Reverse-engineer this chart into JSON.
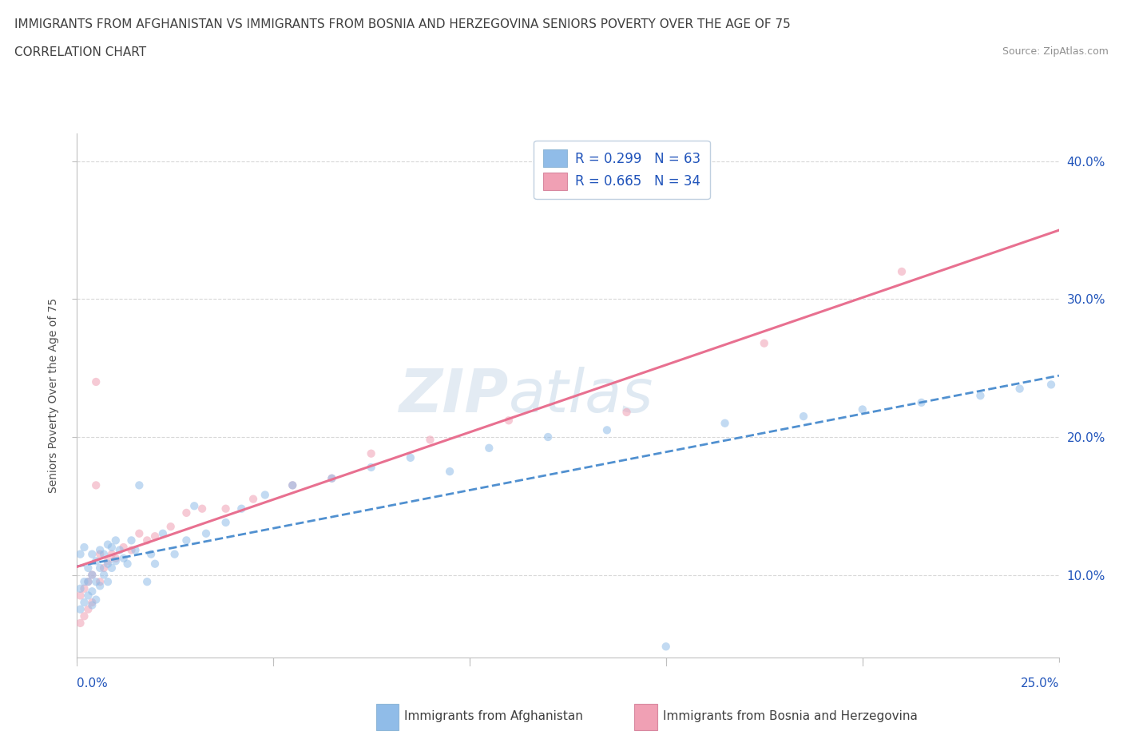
{
  "title_line1": "IMMIGRANTS FROM AFGHANISTAN VS IMMIGRANTS FROM BOSNIA AND HERZEGOVINA SENIORS POVERTY OVER THE AGE OF 75",
  "title_line2": "CORRELATION CHART",
  "source_text": "Source: ZipAtlas.com",
  "ylabel": "Seniors Poverty Over the Age of 75",
  "watermark_part1": "ZIP",
  "watermark_part2": "atlas",
  "afghanistan_color": "#90bce8",
  "bosnia_color": "#f0a0b4",
  "afghanistan_line_color": "#5090d0",
  "bosnia_line_color": "#e87090",
  "xlim": [
    0.0,
    0.25
  ],
  "ylim": [
    0.04,
    0.42
  ],
  "yticks": [
    0.1,
    0.2,
    0.3,
    0.4
  ],
  "xticks": [
    0.0,
    0.05,
    0.1,
    0.15,
    0.2,
    0.25
  ],
  "afghanistan_R": 0.299,
  "afghanistan_N": 63,
  "bosnia_R": 0.665,
  "bosnia_N": 34,
  "afg_x": [
    0.001,
    0.001,
    0.001,
    0.002,
    0.002,
    0.002,
    0.003,
    0.003,
    0.003,
    0.004,
    0.004,
    0.004,
    0.004,
    0.005,
    0.005,
    0.005,
    0.006,
    0.006,
    0.006,
    0.007,
    0.007,
    0.008,
    0.008,
    0.008,
    0.009,
    0.009,
    0.01,
    0.01,
    0.011,
    0.012,
    0.013,
    0.014,
    0.015,
    0.016,
    0.018,
    0.019,
    0.02,
    0.022,
    0.025,
    0.028,
    0.03,
    0.033,
    0.038,
    0.042,
    0.048,
    0.055,
    0.065,
    0.075,
    0.085,
    0.095,
    0.105,
    0.12,
    0.135,
    0.15,
    0.165,
    0.185,
    0.2,
    0.215,
    0.23,
    0.24,
    0.248,
    0.252,
    0.258
  ],
  "afg_y": [
    0.075,
    0.09,
    0.115,
    0.08,
    0.095,
    0.12,
    0.085,
    0.095,
    0.105,
    0.078,
    0.088,
    0.1,
    0.115,
    0.082,
    0.095,
    0.11,
    0.092,
    0.105,
    0.118,
    0.1,
    0.115,
    0.095,
    0.108,
    0.122,
    0.105,
    0.12,
    0.11,
    0.125,
    0.118,
    0.112,
    0.108,
    0.125,
    0.118,
    0.165,
    0.095,
    0.115,
    0.108,
    0.13,
    0.115,
    0.125,
    0.15,
    0.13,
    0.138,
    0.148,
    0.158,
    0.165,
    0.17,
    0.178,
    0.185,
    0.175,
    0.192,
    0.2,
    0.205,
    0.048,
    0.21,
    0.215,
    0.22,
    0.225,
    0.23,
    0.235,
    0.238,
    0.24,
    0.245
  ],
  "bos_x": [
    0.001,
    0.001,
    0.002,
    0.002,
    0.003,
    0.003,
    0.004,
    0.004,
    0.005,
    0.005,
    0.006,
    0.006,
    0.007,
    0.008,
    0.009,
    0.01,
    0.012,
    0.014,
    0.016,
    0.018,
    0.02,
    0.024,
    0.028,
    0.032,
    0.038,
    0.045,
    0.055,
    0.065,
    0.075,
    0.09,
    0.11,
    0.14,
    0.175,
    0.21
  ],
  "bos_y": [
    0.065,
    0.085,
    0.07,
    0.09,
    0.075,
    0.095,
    0.08,
    0.1,
    0.165,
    0.24,
    0.095,
    0.115,
    0.105,
    0.11,
    0.115,
    0.112,
    0.12,
    0.118,
    0.13,
    0.125,
    0.128,
    0.135,
    0.145,
    0.148,
    0.148,
    0.155,
    0.165,
    0.17,
    0.188,
    0.198,
    0.212,
    0.218,
    0.268,
    0.32
  ],
  "background_color": "#ffffff",
  "grid_color": "#d8d8d8",
  "title_fontsize": 11,
  "tick_fontsize": 11,
  "legend_fontsize": 12,
  "scatter_size": 55,
  "scatter_alpha": 0.55
}
